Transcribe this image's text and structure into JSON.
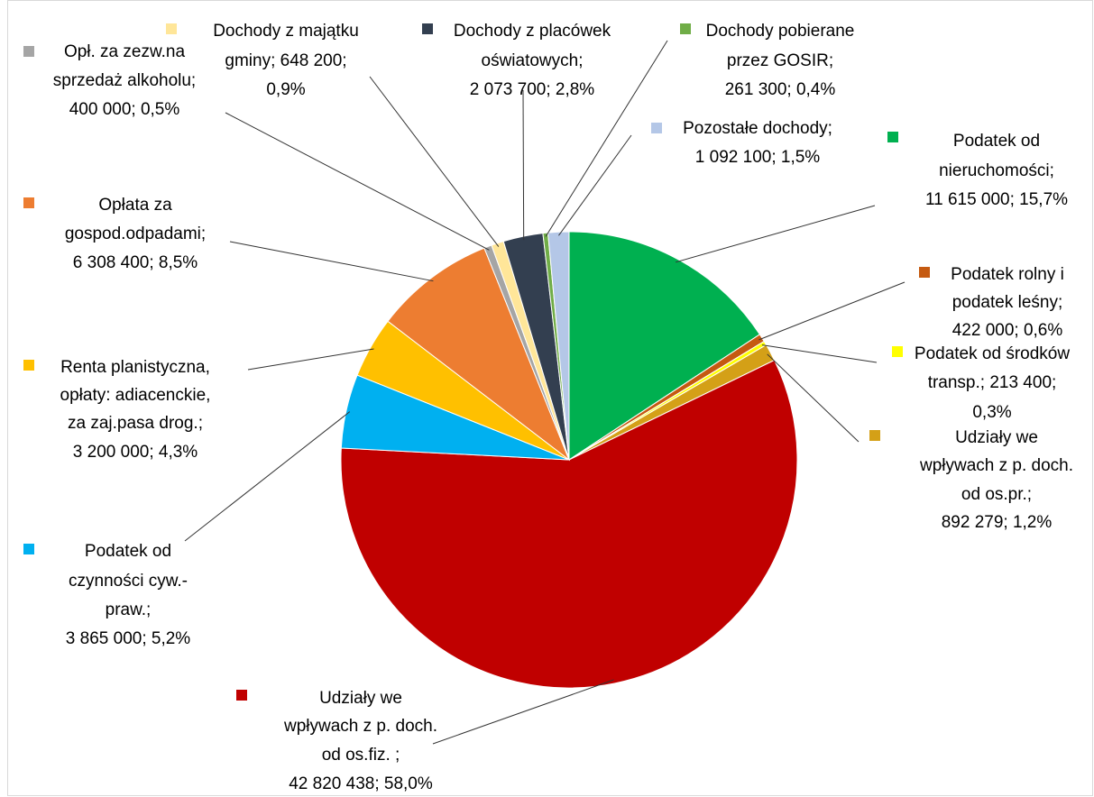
{
  "chart_data": {
    "type": "pie",
    "labels": [
      [
        "Podatek od",
        "nieruchomości;",
        "11 615 000; 15,7%"
      ],
      [
        "Podatek rolny i",
        "podatek leśny;",
        "422 000; 0,6%"
      ],
      [
        "Podatek od środków",
        "transp.; 213 400;",
        "0,3%"
      ],
      [
        "Udziały we",
        "wpływach z p. doch.",
        "od os.pr.;",
        "892 279; 1,2%"
      ],
      [
        "Udziały we",
        "wpływach z p. doch.",
        "od os.fiz. ;",
        "42 820 438; 58,0%"
      ],
      [
        "Podatek od",
        "czynności cyw.-",
        "praw.;",
        "3 865 000; 5,2%"
      ],
      [
        "Renta planistyczna,",
        "opłaty: adiacenckie,",
        "za zaj.pasa drog.;",
        "3 200 000; 4,3%"
      ],
      [
        "Opłata za",
        "gospod.odpadami;",
        "6 308 400; 8,5%"
      ],
      [
        "Opł. za zezw.na",
        "sprzedaż alkoholu;",
        "400 000; 0,5%"
      ],
      [
        "Dochody z majątku",
        "gminy; 648 200;",
        "0,9%"
      ],
      [
        "Dochody z placówek",
        "oświatowych;",
        "2 073 700; 2,8%"
      ],
      [
        "Dochody pobierane",
        "przez GOSIR;",
        "261 300; 0,4%"
      ],
      [
        "Pozostałe dochody;",
        "1 092 100; 1,5%"
      ]
    ],
    "values": [
      11615000,
      422000,
      213400,
      892279,
      42820438,
      3865000,
      3200000,
      6308400,
      400000,
      648200,
      2073700,
      261300,
      1092100
    ],
    "colors": [
      "#00b050",
      "#c55a11",
      "#ffff00",
      "#d4a017",
      "#c00000",
      "#00b0f0",
      "#ffc000",
      "#ed7d31",
      "#a5a5a5",
      "#ffe699",
      "#333f50",
      "#70ad47",
      "#b4c7e7"
    ]
  }
}
